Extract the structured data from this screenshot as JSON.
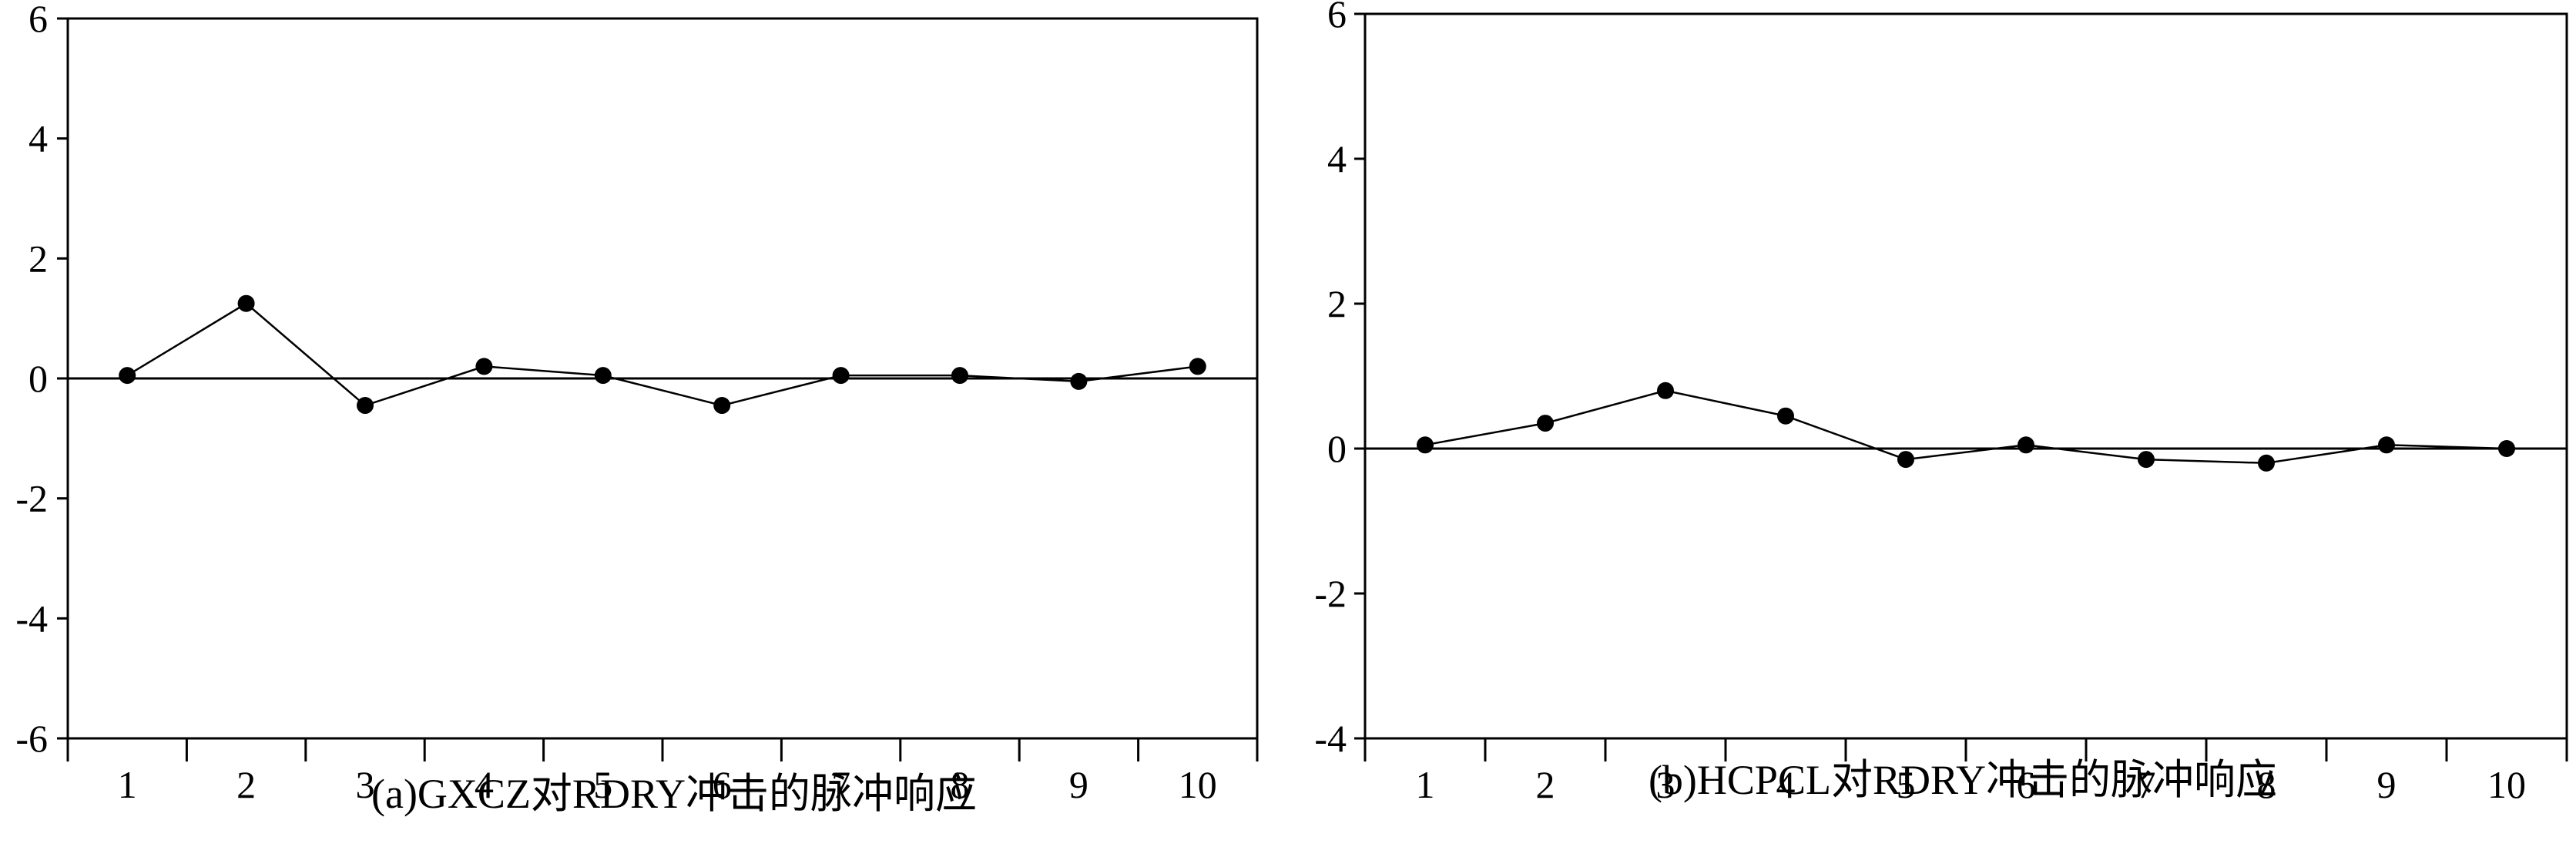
{
  "chart_data": [
    {
      "type": "line",
      "caption": "(a)GXCZ对RDRY冲击的脉冲响应",
      "categories": [
        "1",
        "2",
        "3",
        "4",
        "5",
        "6",
        "7",
        "8",
        "9",
        "10"
      ],
      "series": [
        {
          "values": [
            0.05,
            1.25,
            -0.45,
            0.2,
            0.05,
            -0.45,
            0.05,
            0.05,
            -0.05,
            0.2
          ]
        }
      ],
      "ylim": [
        -6,
        6
      ],
      "yticks": [
        "6",
        "4",
        "2",
        "0",
        "-2",
        "-4",
        "-6"
      ],
      "zero_line": true,
      "grid": false,
      "markers": "filled-circle"
    },
    {
      "type": "line",
      "caption": "(b)HCPCL对RDRY冲击的脉冲响应",
      "categories": [
        "1",
        "2",
        "3",
        "4",
        "5",
        "6",
        "7",
        "8",
        "9",
        "10"
      ],
      "series": [
        {
          "values": [
            0.05,
            0.35,
            0.8,
            0.45,
            -0.15,
            0.05,
            -0.15,
            -0.2,
            0.05,
            0.0
          ]
        }
      ],
      "ylim": [
        -4,
        6
      ],
      "yticks": [
        "6",
        "4",
        "2",
        "0",
        "-2",
        "-4"
      ],
      "zero_line": true,
      "grid": false,
      "markers": "filled-circle"
    }
  ]
}
